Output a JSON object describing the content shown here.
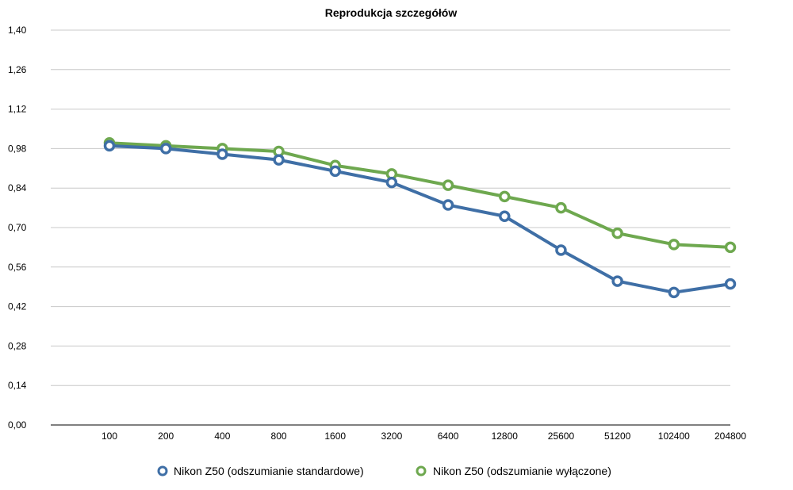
{
  "chart_data": {
    "type": "line",
    "title": "Reprodukcja szczegółów",
    "xlabel": "",
    "ylabel": "",
    "categories": [
      "100",
      "200",
      "400",
      "800",
      "1600",
      "3200",
      "6400",
      "12800",
      "25600",
      "51200",
      "102400",
      "204800"
    ],
    "y_ticks": [
      "0,00",
      "0,14",
      "0,28",
      "0,42",
      "0,56",
      "0,70",
      "0,84",
      "0,98",
      "1,12",
      "1,26",
      "1,40"
    ],
    "ylim": [
      0,
      1.4
    ],
    "grid": true,
    "legend_position": "bottom",
    "series": [
      {
        "name": "Nikon Z50 (odszumianie standardowe)",
        "color": "#3f6fa6",
        "values": [
          0.99,
          0.98,
          0.96,
          0.94,
          0.9,
          0.86,
          0.78,
          0.74,
          0.62,
          0.51,
          0.47,
          0.5
        ]
      },
      {
        "name": "Nikon Z50 (odszumianie wyłączone)",
        "color": "#6ea84f",
        "values": [
          1.0,
          0.99,
          0.98,
          0.97,
          0.92,
          0.89,
          0.85,
          0.81,
          0.77,
          0.68,
          0.64,
          0.63
        ]
      }
    ]
  }
}
